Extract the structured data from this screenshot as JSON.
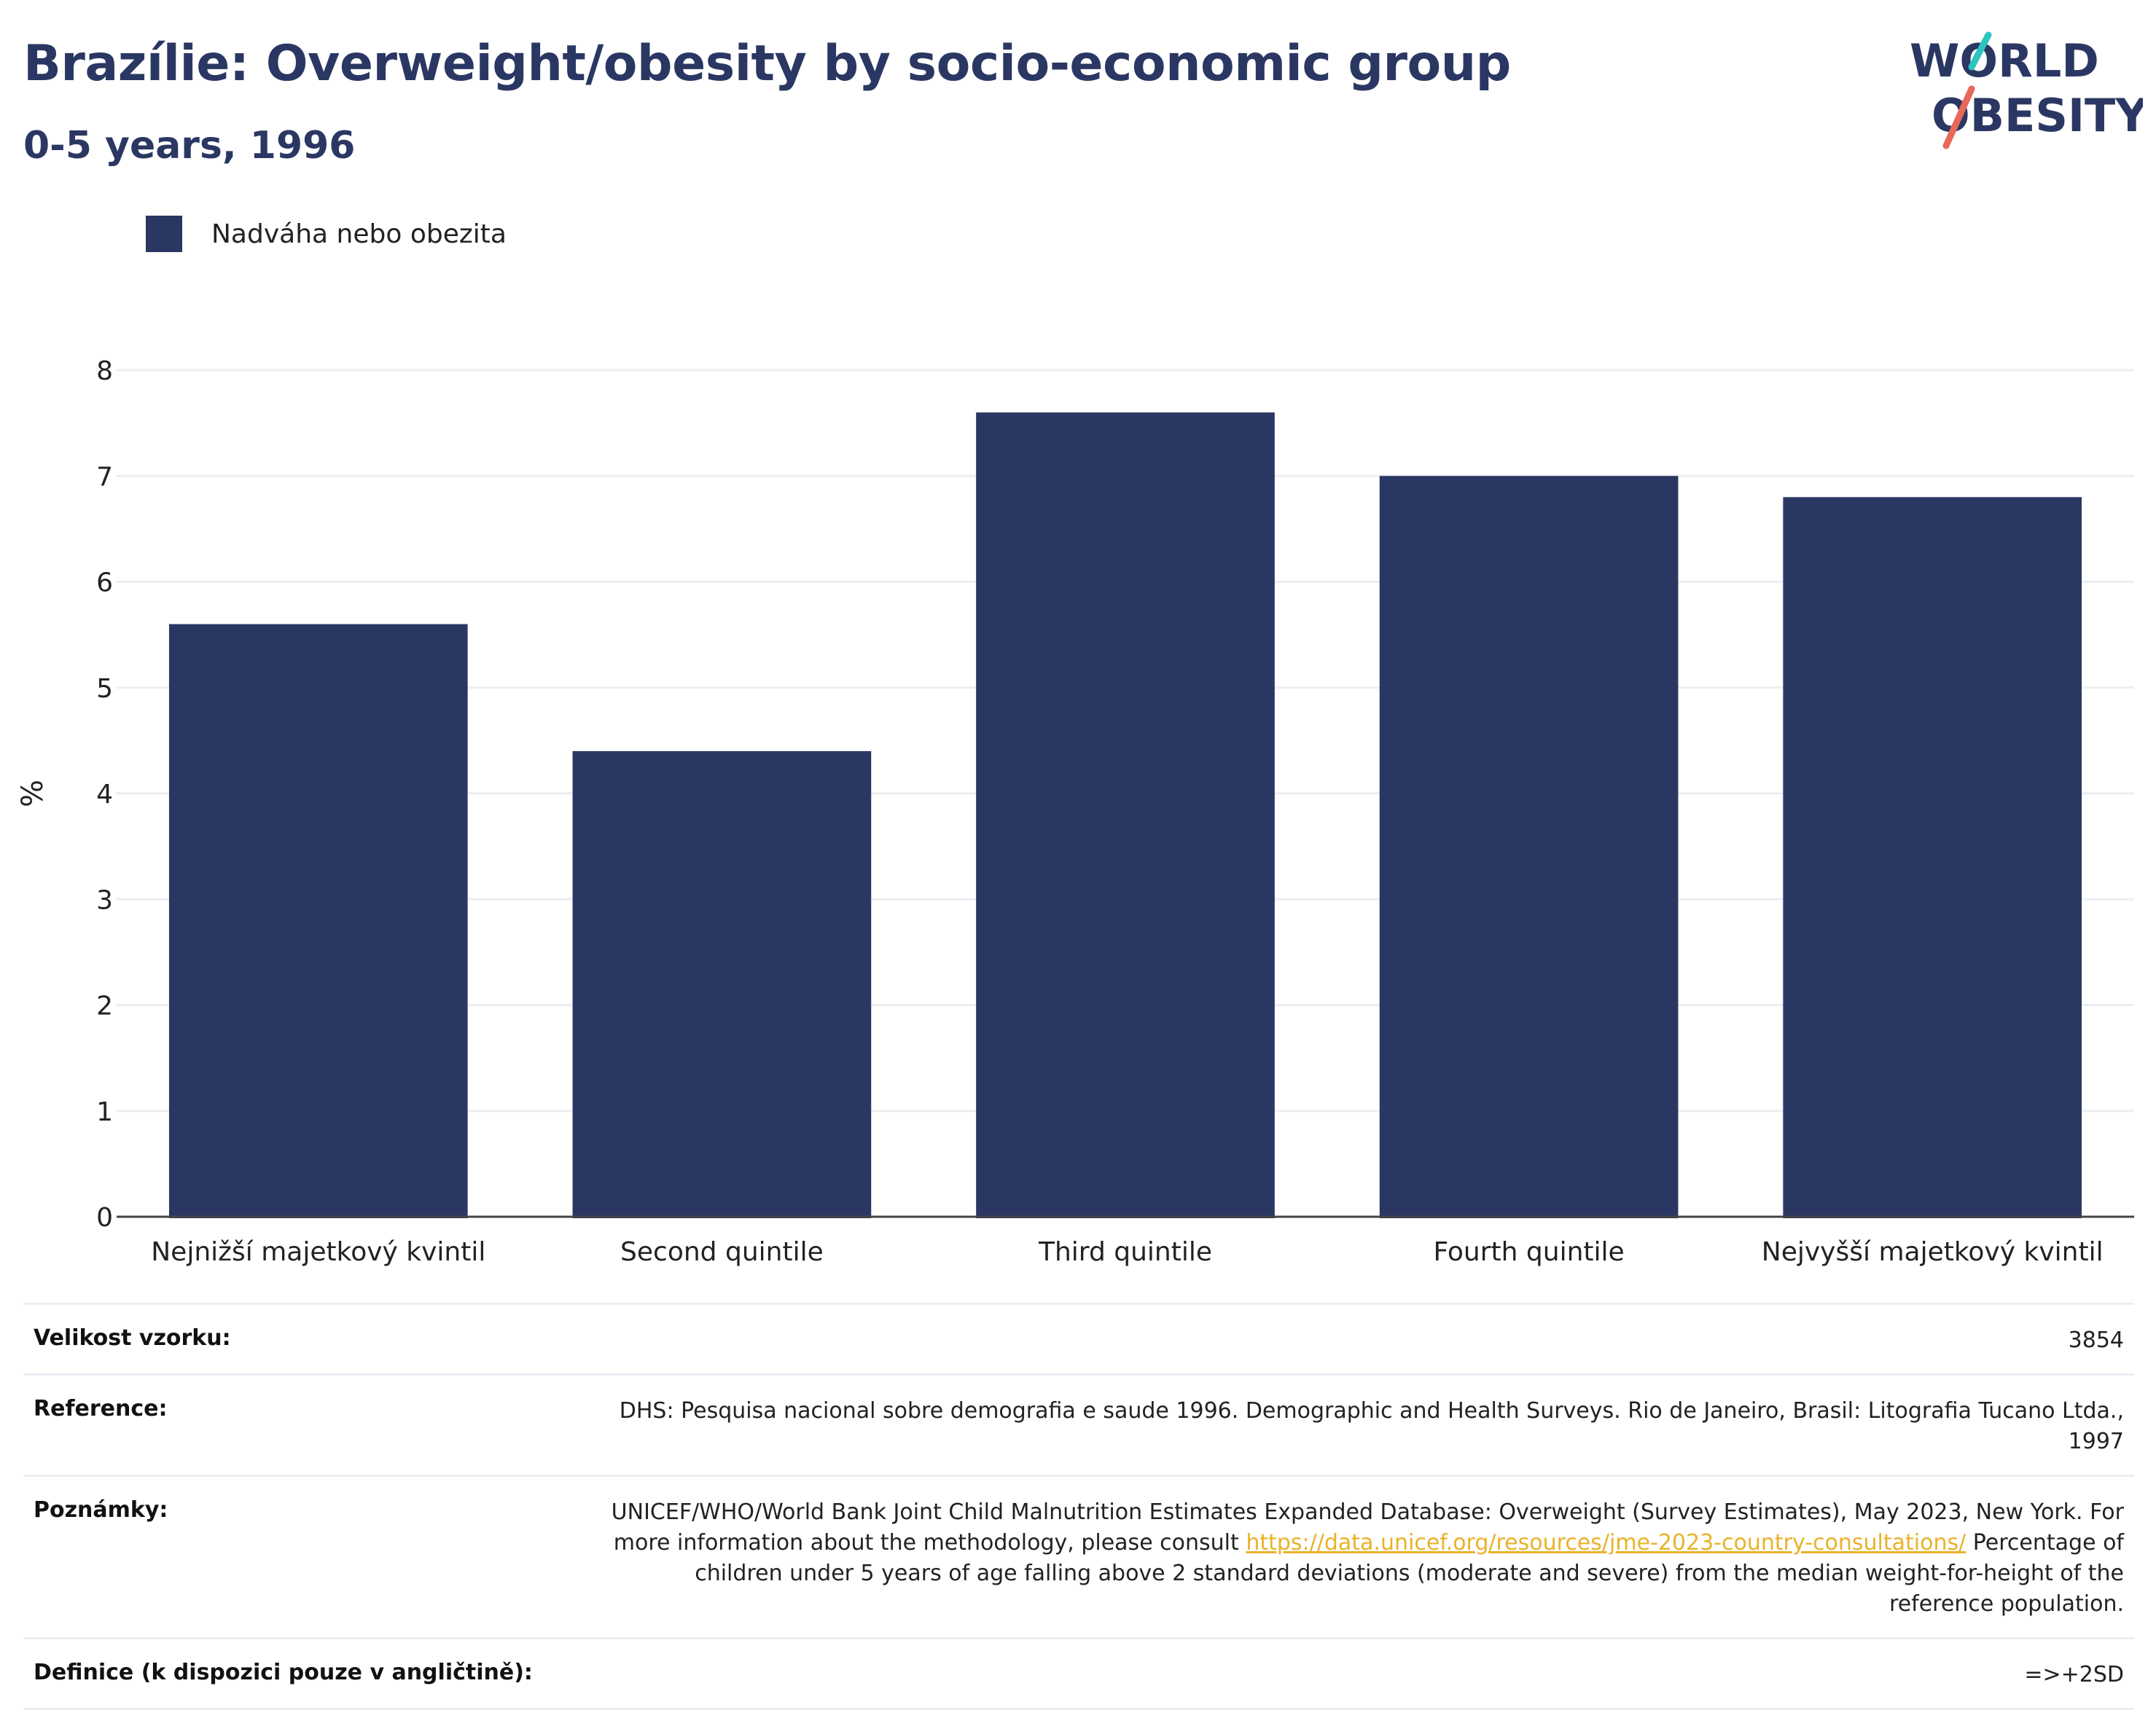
{
  "header": {
    "title": "Brazílie: Overweight/obesity by socio-economic group",
    "subtitle": "0-5 years, 1996"
  },
  "logo": {
    "line1": "WORLD",
    "line2": "OBESITY",
    "colors": {
      "text": "#2b3763",
      "slash_teal": "#2ec4c0",
      "slash_red": "#e8685a"
    }
  },
  "chart_data": {
    "type": "bar",
    "categories": [
      "Nejnižší majetkový kvintil",
      "Second quintile",
      "Third quintile",
      "Fourth quintile",
      "Nejvyšší majetkový kvintil"
    ],
    "series": [
      {
        "name": "Nadváha nebo obezita",
        "values": [
          5.6,
          4.4,
          7.6,
          7.0,
          6.8
        ],
        "color": "#2b3763"
      }
    ],
    "ylabel": "%",
    "xlabel": "",
    "ylim": [
      0,
      8
    ],
    "yticks": [
      0,
      1,
      2,
      3,
      4,
      5,
      6,
      7,
      8
    ],
    "grid": true,
    "legend": "top-left"
  },
  "info": {
    "rows": [
      {
        "key": "Velikost vzorku:",
        "value": "3854"
      },
      {
        "key": "Reference:",
        "value": "DHS: Pesquisa nacional sobre demografia e saude 1996. Demographic and Health Surveys. Rio de Janeiro, Brasil: Litografia Tucano Ltda., 1997"
      },
      {
        "key": "Poznámky:",
        "value_before": "UNICEF/WHO/World Bank Joint Child Malnutrition Estimates Expanded Database: Overweight (Survey Estimates), May 2023, New York. For more information about the methodology, please consult ",
        "link": "https://data.unicef.org/resources/jme-2023-country-consultations/",
        "value_after": " Percentage of children under 5 years of age falling above 2 standard deviations (moderate and severe) from the median weight-for-height of the reference population."
      },
      {
        "key": "Definice (k dispozici pouze v angličtině):",
        "value": "=>+2SD"
      }
    ]
  }
}
